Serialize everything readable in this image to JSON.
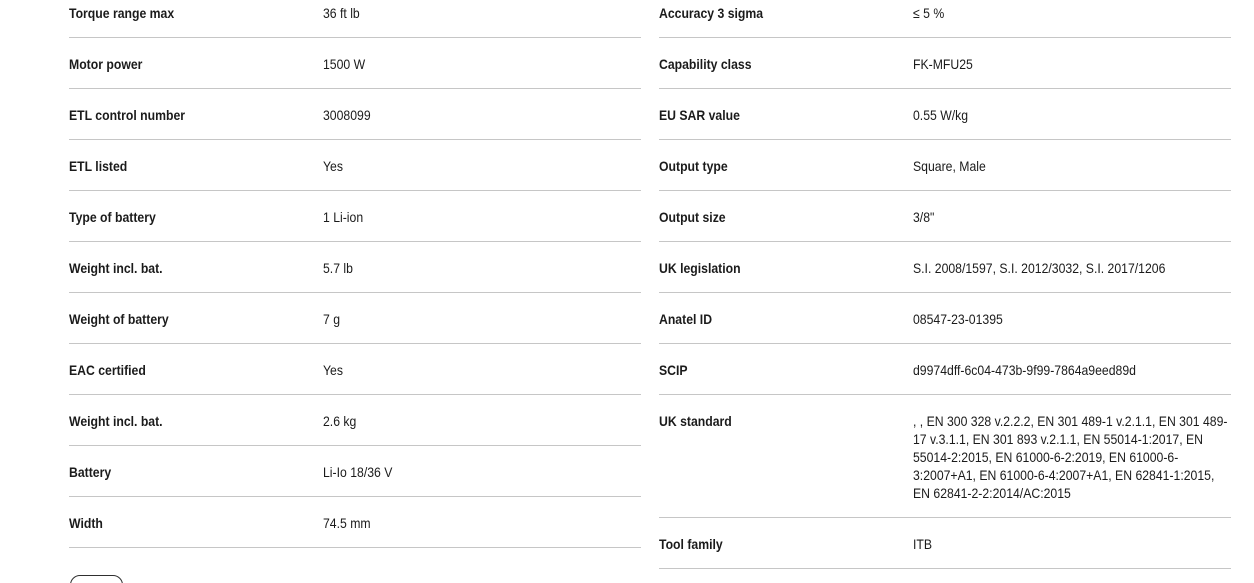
{
  "colors": {
    "background": "#ffffff",
    "text": "#1b1b1b",
    "divider": "#c6c6c6",
    "button_border": "#2f2f2f"
  },
  "spec": {
    "left": {
      "rows": [
        {
          "label": "Torque range max",
          "value": "36 ft lb"
        },
        {
          "label": "Motor power",
          "value": "1500 W"
        },
        {
          "label": "ETL control number",
          "value": "3008099"
        },
        {
          "label": "ETL listed",
          "value": "Yes"
        },
        {
          "label": "Type of battery",
          "value": "1 Li-ion"
        },
        {
          "label": "Weight incl. bat.",
          "value": "5.7 lb"
        },
        {
          "label": "Weight of battery",
          "value": "7 g"
        },
        {
          "label": "EAC certified",
          "value": "Yes"
        },
        {
          "label": "Weight incl. bat.",
          "value": "2.6 kg"
        },
        {
          "label": "Battery",
          "value": "Li-Io 18/36 V"
        },
        {
          "label": "Width",
          "value": "74.5 mm"
        }
      ]
    },
    "right": {
      "rows": [
        {
          "label": "Accuracy 3 sigma",
          "value": "≤ 5 %"
        },
        {
          "label": "Capability class",
          "value": "FK-MFU25"
        },
        {
          "label": "EU SAR value",
          "value": "0.55 W/kg"
        },
        {
          "label": "Output type",
          "value": "Square, Male"
        },
        {
          "label": "Output size",
          "value": "3/8\""
        },
        {
          "label": "UK legislation",
          "value": "S.I. 2008/1597, S.I. 2012/3032, S.I. 2017/1206"
        },
        {
          "label": "Anatel ID",
          "value": "08547-23-01395"
        },
        {
          "label": "SCIP",
          "value": "d9974dff-6c04-473b-9f99-7864a9eed89d"
        },
        {
          "label": "UK standard",
          "value": ", , EN 300 328 v.2.2.2, EN 301 489-1 v.2.1.1, EN 301 489-17 v.3.1.1, EN 301 893 v.2.1.1, EN 55014-1:2017, EN 55014-2:2015, EN 61000-6-2:2019, EN 61000-6-3:2007+A1, EN 61000-6-4:2007+A1, EN 62841-1:2015, EN 62841-2-2:2014/AC:2015"
        },
        {
          "label": "Tool family",
          "value": "ITB"
        }
      ]
    }
  },
  "truncated_button": {
    "label": ""
  }
}
